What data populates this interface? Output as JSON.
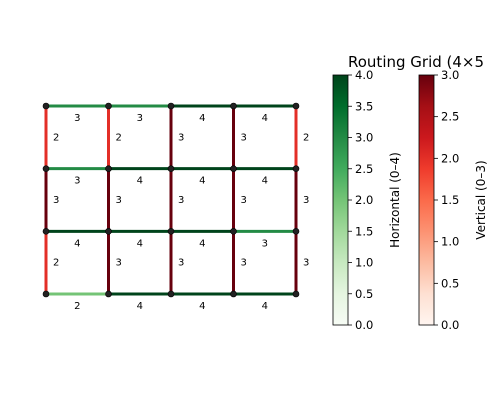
{
  "chart_data": {
    "type": "grid-network",
    "title": "Routing Grid (4×5",
    "grid": {
      "rows": 4,
      "cols": 5
    },
    "horizontal_edges": [
      [
        3,
        3,
        4,
        4
      ],
      [
        3,
        4,
        4,
        4
      ],
      [
        4,
        4,
        4,
        3
      ],
      [
        2,
        4,
        4,
        4
      ]
    ],
    "vertical_edges": [
      [
        2,
        2,
        3,
        3,
        2
      ],
      [
        3,
        3,
        3,
        3,
        3
      ],
      [
        2,
        3,
        3,
        3,
        3
      ]
    ],
    "colorbars": [
      {
        "name": "horizontal",
        "label": "Horizontal (0–4)",
        "colormap": "Greens",
        "range": [
          0,
          4
        ],
        "ticks": [
          "0.0",
          "0.5",
          "1.0",
          "1.5",
          "2.0",
          "2.5",
          "3.0",
          "3.5",
          "4.0"
        ]
      },
      {
        "name": "vertical",
        "label": "Vertical (0–3)",
        "colormap": "Reds",
        "range": [
          0,
          3
        ],
        "ticks": [
          "0.0",
          "0.5",
          "1.0",
          "1.5",
          "2.0",
          "2.5",
          "3.0"
        ]
      }
    ],
    "colors": {
      "greens": [
        "#f7fcf5",
        "#e5f5e0",
        "#c7e9c0",
        "#a1d99b",
        "#74c476",
        "#41ab5d",
        "#238b45",
        "#006d2c",
        "#00441b"
      ],
      "reds": [
        "#fff5f0",
        "#fee0d2",
        "#fcbba1",
        "#fc9272",
        "#fb6a4a",
        "#ef3b2c",
        "#cb181d",
        "#a50f15",
        "#67000d"
      ],
      "node": "#222222"
    }
  }
}
